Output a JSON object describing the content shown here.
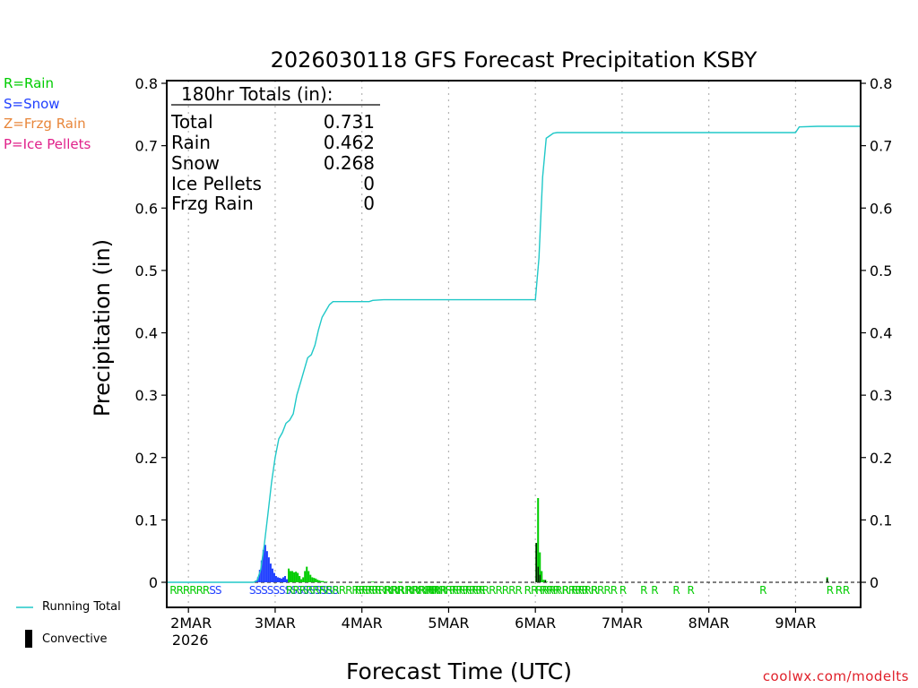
{
  "page_legend": {
    "rain": "R=Rain",
    "snow": "S=Snow",
    "frzg_rain": "Z=Frzg Rain",
    "ice_pellets": "P=Ice Pellets"
  },
  "colors": {
    "rain": "#00cc00",
    "snow": "#1f3fff",
    "frzg_rain": "#e8863a",
    "ice_pellets": "#e0208a",
    "running_total": "#20c8c8",
    "convective": "#000000",
    "credit": "#e0202a"
  },
  "bottom_legend": {
    "running_total": "Running Total",
    "convective": "Convective"
  },
  "credit": "coolwx.com/modelts",
  "chart_data": {
    "type": "bar",
    "title": "2026030118 GFS Forecast Precipitation KSBY",
    "xlabel": "Forecast Time (UTC)",
    "ylabel": "Precipitation (in)",
    "ylim": [
      0,
      0.8
    ],
    "xlim": [
      -6,
      186
    ],
    "x_unit": "hours after 2026-03-02 00Z",
    "yticks": [
      "0",
      "0.1",
      "0.2",
      "0.3",
      "0.4",
      "0.5",
      "0.6",
      "0.7",
      "0.8"
    ],
    "ytick_values": [
      0,
      0.1,
      0.2,
      0.3,
      0.4,
      0.5,
      0.6,
      0.7,
      0.8
    ],
    "xticks": [
      {
        "label": "2MAR",
        "sub": "2026",
        "h": 0
      },
      {
        "label": "3MAR",
        "sub": "",
        "h": 24
      },
      {
        "label": "4MAR",
        "sub": "",
        "h": 48
      },
      {
        "label": "5MAR",
        "sub": "",
        "h": 72
      },
      {
        "label": "6MAR",
        "sub": "",
        "h": 96
      },
      {
        "label": "7MAR",
        "sub": "",
        "h": 120
      },
      {
        "label": "8MAR",
        "sub": "",
        "h": 144
      },
      {
        "label": "9MAR",
        "sub": "",
        "h": 168
      }
    ],
    "totals_box": {
      "header": "180hr Totals (in):",
      "rows": [
        {
          "label": "Total",
          "value": "0.731"
        },
        {
          "label": "Rain",
          "value": "0.462"
        },
        {
          "label": "Snow",
          "value": "0.268"
        },
        {
          "label": "Ice Pellets",
          "value": "0"
        },
        {
          "label": "Frzg Rain",
          "value": "0"
        }
      ]
    },
    "series": [
      {
        "name": "Snow",
        "kind": "bars",
        "x": [
          18.75,
          19.25,
          19.75,
          20.25,
          20.75,
          21.25,
          21.75,
          22.25,
          22.75,
          23.25,
          23.75,
          24.25,
          24.75,
          25.25,
          25.75,
          26.25,
          26.75,
          27.25
        ],
        "values": [
          0.003,
          0.008,
          0.02,
          0.035,
          0.052,
          0.06,
          0.05,
          0.04,
          0.03,
          0.022,
          0.015,
          0.01,
          0.008,
          0.007,
          0.006,
          0.008,
          0.01,
          0.005
        ]
      },
      {
        "name": "Rain",
        "kind": "bars",
        "x": [
          27.75,
          28.25,
          28.75,
          29.25,
          29.75,
          30.25,
          30.75,
          31.25,
          31.75,
          32.25,
          32.75,
          33.25,
          33.75,
          34.25,
          34.75,
          35.25,
          35.75,
          36.25,
          36.75,
          37.25,
          37.75,
          38.25,
          50.75,
          51.25,
          58.25,
          58.75,
          96.25,
          96.75,
          97.25,
          97.75,
          98.25,
          98.75,
          99.25,
          176.75
        ],
        "values": [
          0.022,
          0.018,
          0.018,
          0.016,
          0.017,
          0.015,
          0.01,
          0.005,
          0.008,
          0.018,
          0.025,
          0.018,
          0.012,
          0.008,
          0.007,
          0.006,
          0.004,
          0.003,
          0.002,
          0.002,
          0.001,
          0.001,
          0.001,
          0.001,
          0.001,
          0.001,
          0.063,
          0.135,
          0.048,
          0.018,
          0.004,
          0.004,
          0.001,
          0.008
        ]
      },
      {
        "name": "Convective",
        "kind": "bars",
        "x": [
          96.25,
          96.75,
          97.25,
          98.75,
          176.75
        ],
        "values": [
          0.063,
          0.025,
          0.012,
          0.003,
          0.006
        ]
      },
      {
        "name": "Running Total",
        "kind": "line",
        "x": [
          -6,
          18,
          19,
          20,
          21,
          22,
          23,
          24,
          25,
          26,
          27,
          28,
          29,
          30,
          31,
          32,
          33,
          34,
          35,
          36,
          37,
          38,
          39,
          40,
          42,
          44,
          46,
          48,
          50,
          51,
          54,
          60,
          72,
          84,
          96,
          97,
          98,
          99,
          100,
          101,
          102,
          108,
          120,
          144,
          168,
          169,
          174,
          186
        ],
        "values": [
          0,
          0,
          0.003,
          0.02,
          0.06,
          0.11,
          0.16,
          0.2,
          0.23,
          0.24,
          0.255,
          0.26,
          0.27,
          0.3,
          0.32,
          0.34,
          0.36,
          0.365,
          0.38,
          0.405,
          0.425,
          0.435,
          0.445,
          0.45,
          0.45,
          0.45,
          0.45,
          0.45,
          0.45,
          0.452,
          0.453,
          0.453,
          0.453,
          0.453,
          0.453,
          0.52,
          0.65,
          0.712,
          0.716,
          0.72,
          0.721,
          0.721,
          0.721,
          0.721,
          0.721,
          0.73,
          0.731,
          0.731
        ]
      }
    ],
    "ptype_row": [
      {
        "text": "RRRRRRSS",
        "type": "mixed",
        "h": -5.2
      },
      {
        "text": "SSSSSSSSSSSSSSS",
        "type": "snow",
        "h": 16.8
      },
      {
        "text": "RRRRRRRRRRRRRRRRRRRRRRR",
        "type": "rain",
        "h": 27
      },
      {
        "text": "RRRR RRR RRRRRRRRRRRR",
        "type": "rain",
        "h": 46
      },
      {
        "text": "RRR RRRRRRRRRRR RR RRR R RRRR",
        "type": "rain",
        "h": 66
      },
      {
        "text": "RRRRRRRR RRRR R",
        "type": "rain",
        "h": 96
      },
      {
        "text": "R",
        "type": "rain",
        "h": 125
      },
      {
        "text": "R",
        "type": "rain",
        "h": 128
      },
      {
        "text": "R",
        "type": "rain",
        "h": 134
      },
      {
        "text": "R",
        "type": "rain",
        "h": 138
      },
      {
        "text": "R",
        "type": "rain",
        "h": 158
      },
      {
        "text": "R",
        "type": "rain",
        "h": 176.5
      },
      {
        "text": "R",
        "type": "rain",
        "h": 179
      },
      {
        "text": "R",
        "type": "rain",
        "h": 181
      }
    ]
  }
}
